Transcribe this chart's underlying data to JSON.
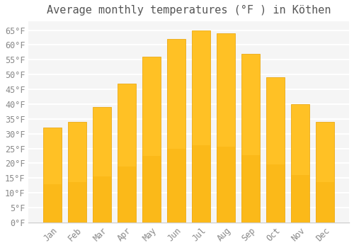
{
  "title": "Average monthly temperatures (°F ) in Köthen",
  "months": [
    "Jan",
    "Feb",
    "Mar",
    "Apr",
    "May",
    "Jun",
    "Jul",
    "Aug",
    "Sep",
    "Oct",
    "Nov",
    "Dec"
  ],
  "values": [
    32,
    34,
    39,
    47,
    56,
    62,
    65,
    64,
    57,
    49,
    40,
    34
  ],
  "bar_color_top": "#FFC125",
  "bar_color_bottom": "#F5A800",
  "bar_edge_color": "#E8A000",
  "plot_bg_color": "#F5F5F5",
  "fig_bg_color": "#FFFFFF",
  "grid_color": "#FFFFFF",
  "text_color": "#888888",
  "title_color": "#555555",
  "spine_color": "#CCCCCC",
  "ylim": [
    0,
    68
  ],
  "ytick_step": 5,
  "title_fontsize": 11,
  "tick_fontsize": 8.5
}
